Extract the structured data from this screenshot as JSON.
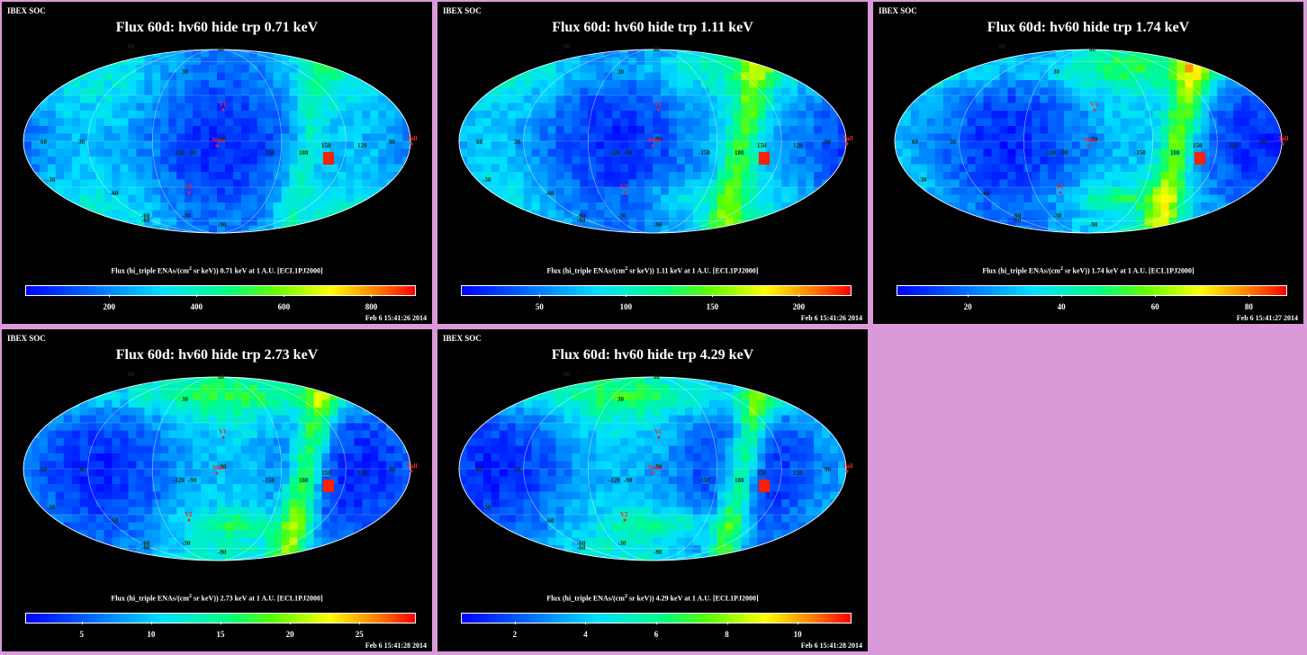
{
  "colors": {
    "background": "#da9ada",
    "panel": "#000000",
    "marker": "#ff2020",
    "grid_label": "#008000"
  },
  "panels": [
    {
      "corner": "IBEX SOC",
      "title": "Flux 60d: hv60 hide trp 0.71 keV",
      "cb_prefix": "Flux (hi_triple ENAs/(cm",
      "cb_sup": "2",
      "cb_suffix": " sr keV)) 0.71 keV at 1 A.U. [ECL1PJ2000]",
      "stamp": "Feb  6 15:41:26 2014",
      "chart_data": {
        "type": "heatmap",
        "projection": "mollweide",
        "colorbar_ticks": [
          200,
          400,
          600,
          800
        ],
        "colorbar_range": [
          10,
          900
        ]
      },
      "markers": [
        {
          "label": "Nose"
        },
        {
          "label": "Tail"
        },
        {
          "label": "V1"
        },
        {
          "label": "V2"
        }
      ],
      "map": {
        "seed": 11,
        "hot": 0.0
      }
    },
    {
      "corner": "IBEX SOC",
      "title": "Flux 60d: hv60 hide trp 1.11 keV",
      "cb_prefix": "Flux (hi_triple ENAs/(cm",
      "cb_sup": "2",
      "cb_suffix": " sr keV)) 1.11 keV at 1 A.U. [ECL1PJ2000]",
      "stamp": "Feb  6 15:41:26 2014",
      "chart_data": {
        "type": "heatmap",
        "projection": "mollweide",
        "colorbar_ticks": [
          50,
          100,
          150,
          200
        ],
        "colorbar_range": [
          5,
          230
        ]
      },
      "markers": [
        {
          "label": "Nose"
        },
        {
          "label": "Tail"
        },
        {
          "label": "V1"
        },
        {
          "label": "V2"
        }
      ],
      "map": {
        "seed": 23,
        "hot": 0.25
      }
    },
    {
      "corner": "IBEX SOC",
      "title": "Flux 60d: hv60 hide trp 1.74 keV",
      "cb_prefix": "Flux (hi_triple ENAs/(cm",
      "cb_sup": "2",
      "cb_suffix": " sr keV)) 1.74 keV at 1 A.U. [ECL1PJ2000]",
      "stamp": "Feb  6 15:41:27 2014",
      "chart_data": {
        "type": "heatmap",
        "projection": "mollweide",
        "colorbar_ticks": [
          20,
          40,
          60,
          80
        ],
        "colorbar_range": [
          5,
          88
        ]
      },
      "markers": [
        {
          "label": "Nose"
        },
        {
          "label": "Tail"
        },
        {
          "label": "V1"
        },
        {
          "label": "V2"
        }
      ],
      "map": {
        "seed": 37,
        "hot": 0.45
      }
    },
    {
      "corner": "IBEX SOC",
      "title": "Flux 60d: hv60 hide trp 2.73 keV",
      "cb_prefix": "Flux (hi_triple ENAs/(cm",
      "cb_sup": "2",
      "cb_suffix": " sr keV)) 2.73 keV at 1 A.U. [ECL1PJ2000]",
      "stamp": "Feb  6 15:41:28 2014",
      "chart_data": {
        "type": "heatmap",
        "projection": "mollweide",
        "colorbar_ticks": [
          5,
          10,
          15,
          20,
          25
        ],
        "colorbar_range": [
          1,
          29
        ]
      },
      "markers": [
        {
          "label": "Nose"
        },
        {
          "label": "Tail"
        },
        {
          "label": "V1"
        },
        {
          "label": "V2"
        }
      ],
      "map": {
        "seed": 51,
        "hot": 0.5
      }
    },
    {
      "corner": "IBEX SOC",
      "title": "Flux 60d: hv60 hide trp 4.29 keV",
      "cb_prefix": "Flux (hi_triple ENAs/(cm",
      "cb_sup": "2",
      "cb_suffix": " sr keV)) 4.29 keV at 1 A.U. [ECL1PJ2000]",
      "stamp": "Feb  6 15:41:28 2014",
      "chart_data": {
        "type": "heatmap",
        "projection": "mollweide",
        "colorbar_ticks": [
          2,
          4,
          6,
          8,
          10
        ],
        "colorbar_range": [
          0.5,
          11.5
        ]
      },
      "markers": [
        {
          "label": "Nose"
        },
        {
          "label": "Tail"
        },
        {
          "label": "V1"
        },
        {
          "label": "V2"
        }
      ],
      "map": {
        "seed": 67,
        "hot": 0.5
      }
    }
  ],
  "grid_labels": [
    "60",
    "30",
    "-30",
    "-60",
    "-90",
    "-60",
    "-90",
    "-120",
    "-150",
    "180",
    "150",
    "120",
    "90",
    "60",
    "30",
    "-60",
    "-30",
    "60",
    "-90"
  ]
}
